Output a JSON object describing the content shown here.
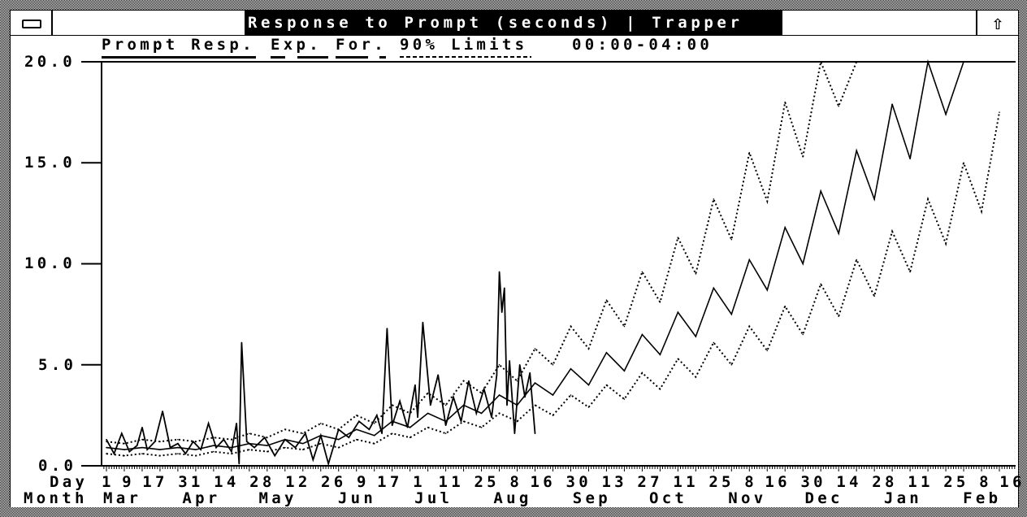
{
  "window": {
    "title": "Response to Prompt (seconds) | Trapper",
    "system_menu_icon": "minus-bar-icon",
    "maximize_icon": "up-arrow-icon"
  },
  "legend": {
    "items": [
      "Prompt Resp.",
      "Exp.",
      "For.",
      "90% Limits"
    ],
    "time_range": "00:00-04:00"
  },
  "chart_data": {
    "type": "line",
    "title": "Response to Prompt (seconds)",
    "ylim": [
      0,
      20
    ],
    "y_ticks": [
      "20.0",
      "15.0",
      "10.0",
      "5.0",
      "0.0"
    ],
    "x_row_labels": {
      "day": "Day",
      "month": "Month"
    },
    "x_day_ticks": [
      "Mar 1",
      "Mar 9",
      "Mar 17",
      "Mar 31",
      "Apr 14",
      "Apr 28",
      "May 12",
      "May 26",
      "Jun 9",
      "Jun 17",
      "Jul 1",
      "Jul 11",
      "Jul 25",
      "Aug 8",
      "Aug 16",
      "Aug 30",
      "Sep 13",
      "Sep 27",
      "Oct 11",
      "Oct 25",
      "Nov 8",
      "Nov 16",
      "Nov 30",
      "Dec 14",
      "Dec 28",
      "Jan 11",
      "Jan 25",
      "Feb 8",
      "Feb 16"
    ],
    "x_day_tick_labels": [
      "1",
      "9",
      "17",
      "31",
      "14",
      "28",
      "12",
      "26",
      "9",
      "17",
      "1",
      "11",
      "25",
      "8",
      "16",
      "30",
      "13",
      "27",
      "11",
      "25",
      "8",
      "16",
      "30",
      "14",
      "28",
      "11",
      "25",
      "8",
      "16"
    ],
    "x_months": [
      "Mar",
      "Apr",
      "May",
      "Jun",
      "Jul",
      "Aug",
      "Sep",
      "Oct",
      "Nov",
      "Dec",
      "Jan",
      "Feb"
    ],
    "grid": false,
    "legend_placement": "top",
    "actual": {
      "name": "Prompt Resp.",
      "style": "solid",
      "x": [
        "Mar 1",
        "Mar 4",
        "Mar 7",
        "Mar 10",
        "Mar 13",
        "Mar 15",
        "Mar 17",
        "Mar 20",
        "Mar 23",
        "Mar 26",
        "Mar 29",
        "Apr 1",
        "Apr 4",
        "Apr 7",
        "Apr 10",
        "Apr 13",
        "Apr 16",
        "Apr 19",
        "Apr 21",
        "Apr 22",
        "Apr 23",
        "Apr 25",
        "Apr 28",
        "May 2",
        "May 6",
        "May 10",
        "May 14",
        "May 18",
        "May 21",
        "May 24",
        "May 27",
        "May 31",
        "Jun 4",
        "Jun 8",
        "Jun 12",
        "Jun 15",
        "Jun 17",
        "Jun 19",
        "Jun 21",
        "Jun 24",
        "Jun 27",
        "Jun 30",
        "Jul 1",
        "Jul 3",
        "Jul 6",
        "Jul 9",
        "Jul 12",
        "Jul 15",
        "Jul 18",
        "Jul 21",
        "Jul 24",
        "Jul 27",
        "Jul 30",
        "Aug 1",
        "Aug 2",
        "Aug 3",
        "Aug 4",
        "Aug 5",
        "Aug 6",
        "Aug 8",
        "Aug 10",
        "Aug 12",
        "Aug 14",
        "Aug 16"
      ],
      "y": [
        1.3,
        0.6,
        1.6,
        0.7,
        1.0,
        1.9,
        0.8,
        1.2,
        2.7,
        0.9,
        1.1,
        0.6,
        1.2,
        0.8,
        2.1,
        0.9,
        1.3,
        0.7,
        2.1,
        0.1,
        6.1,
        1.2,
        0.9,
        1.4,
        0.5,
        1.3,
        0.9,
        1.6,
        0.3,
        1.5,
        0.1,
        1.8,
        1.4,
        2.2,
        1.8,
        2.5,
        1.6,
        6.8,
        2.0,
        3.2,
        1.9,
        4.0,
        2.4,
        7.1,
        3.0,
        4.5,
        2.0,
        3.4,
        2.2,
        4.2,
        2.6,
        3.8,
        2.4,
        4.5,
        9.6,
        7.6,
        8.8,
        3.0,
        5.2,
        1.6,
        5.0,
        3.4,
        4.6,
        1.6
      ]
    },
    "dates": [
      "Mar 1",
      "Mar 8",
      "Mar 15",
      "Mar 22",
      "Mar 29",
      "Apr 5",
      "Apr 12",
      "Apr 19",
      "Apr 26",
      "May 3",
      "May 10",
      "May 17",
      "May 24",
      "May 31",
      "Jun 7",
      "Jun 14",
      "Jun 21",
      "Jun 28",
      "Jul 5",
      "Jul 12",
      "Jul 19",
      "Jul 26",
      "Aug 2",
      "Aug 9",
      "Aug 16",
      "Aug 23",
      "Aug 30",
      "Sep 6",
      "Sep 13",
      "Sep 20",
      "Sep 27",
      "Oct 4",
      "Oct 11",
      "Oct 18",
      "Oct 25",
      "Nov 1",
      "Nov 8",
      "Nov 15",
      "Nov 22",
      "Nov 29",
      "Dec 6",
      "Dec 13",
      "Dec 20",
      "Dec 27",
      "Jan 3",
      "Jan 10",
      "Jan 17",
      "Jan 24",
      "Jan 31",
      "Feb 7",
      "Feb 14"
    ],
    "series": [
      {
        "name": "Exp.",
        "style": "solid",
        "values": [
          0.9,
          0.8,
          0.9,
          0.8,
          0.9,
          0.8,
          1.0,
          0.9,
          1.1,
          1.0,
          1.3,
          1.1,
          1.5,
          1.3,
          1.8,
          1.5,
          2.2,
          1.9,
          2.6,
          2.2,
          3.0,
          2.6,
          3.5,
          3.0,
          4.1,
          3.5,
          4.8,
          4.0,
          5.6,
          4.7,
          6.5,
          5.5,
          7.6,
          6.4,
          8.8,
          7.5,
          10.2,
          8.7,
          11.8,
          10.0,
          13.6,
          11.5,
          15.6,
          13.2,
          17.9,
          15.2,
          20,
          17.4,
          20,
          20,
          20
        ]
      },
      {
        "name": "90% Limits (lower)",
        "style": "dotted",
        "values": [
          0.6,
          0.5,
          0.6,
          0.5,
          0.6,
          0.5,
          0.7,
          0.6,
          0.8,
          0.7,
          0.9,
          0.8,
          1.1,
          0.9,
          1.3,
          1.1,
          1.6,
          1.4,
          1.9,
          1.6,
          2.2,
          1.9,
          2.6,
          2.2,
          3.0,
          2.5,
          3.5,
          2.9,
          4.0,
          3.3,
          4.6,
          3.8,
          5.3,
          4.4,
          6.1,
          5.0,
          6.9,
          5.7,
          7.9,
          6.5,
          9.0,
          7.4,
          10.2,
          8.4,
          11.6,
          9.6,
          13.2,
          11.0,
          15.0,
          12.6,
          17.5
        ]
      },
      {
        "name": "90% Limits (upper)",
        "style": "dotted",
        "values": [
          1.2,
          1.1,
          1.3,
          1.2,
          1.3,
          1.2,
          1.4,
          1.3,
          1.6,
          1.4,
          1.8,
          1.6,
          2.1,
          1.8,
          2.5,
          2.1,
          3.0,
          2.6,
          3.6,
          3.0,
          4.2,
          3.6,
          5.0,
          4.2,
          5.8,
          5.0,
          6.9,
          5.8,
          8.2,
          6.9,
          9.6,
          8.1,
          11.3,
          9.5,
          13.2,
          11.2,
          15.5,
          13.1,
          18.0,
          15.3,
          20,
          17.8,
          20,
          20,
          20,
          20,
          20,
          20,
          20,
          20,
          20
        ]
      }
    ]
  }
}
